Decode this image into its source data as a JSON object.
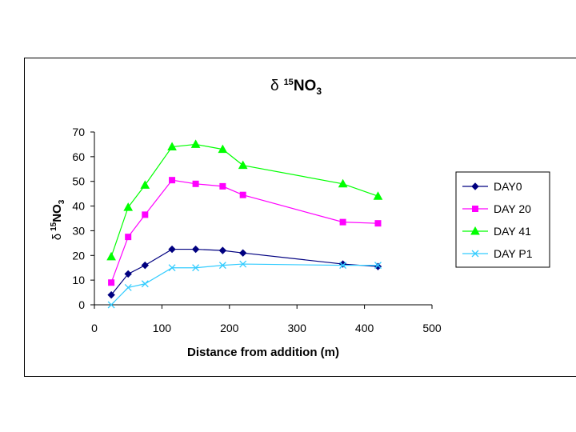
{
  "chart_data": {
    "type": "line",
    "title": {
      "prefix": "δ",
      "sup": "15",
      "main": "NO",
      "sub": "3"
    },
    "xlabel": "Distance from addition (m)",
    "ylabel": {
      "prefix": "δ",
      "sup": "15",
      "main": "NO",
      "sub": "3"
    },
    "xlim": [
      0,
      500
    ],
    "ylim": [
      0,
      70
    ],
    "xticks": [
      0,
      100,
      200,
      300,
      400,
      500
    ],
    "yticks": [
      0,
      10,
      20,
      30,
      40,
      50,
      60,
      70
    ],
    "grid": false,
    "legend_position": "right",
    "x": [
      25,
      50,
      75,
      115,
      150,
      190,
      220,
      368,
      420
    ],
    "series": [
      {
        "name": "DAY0",
        "color": "#000080",
        "marker": "diamond",
        "values": [
          4,
          12.5,
          16,
          22.5,
          22.5,
          22,
          21,
          16.5,
          15.5
        ]
      },
      {
        "name": "DAY 20",
        "color": "#FF00FF",
        "marker": "square",
        "values": [
          9,
          27.5,
          36.5,
          50.5,
          49,
          48,
          44.5,
          33.5,
          33
        ]
      },
      {
        "name": "DAY 41",
        "color": "#00FF00",
        "marker": "triangle",
        "values": [
          19.5,
          39.5,
          48.5,
          64,
          65,
          63,
          56.5,
          49,
          44
        ]
      },
      {
        "name": "DAY P1",
        "color": "#33CCFF",
        "marker": "x",
        "values": [
          0,
          7,
          8.5,
          15,
          15,
          16,
          16.5,
          16,
          16
        ]
      }
    ]
  }
}
